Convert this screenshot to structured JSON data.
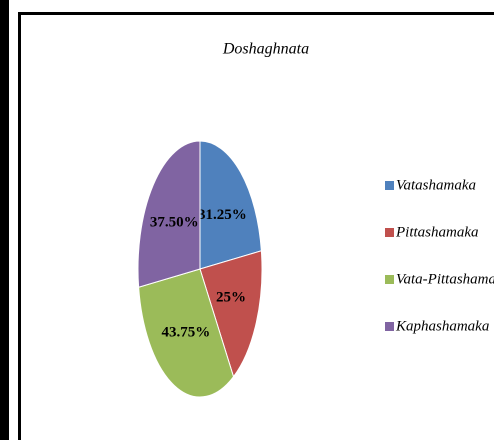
{
  "chart_data": {
    "type": "pie",
    "title": "Doshaghnata",
    "categories": [
      "Vatashamaka",
      "Pittashamaka",
      "Vata-Pittashamaka",
      "Kaphashamaka"
    ],
    "values": [
      31.25,
      25,
      43.75,
      37.5
    ],
    "value_labels": [
      "31.25%",
      "25%",
      "43.75%",
      "37.50%"
    ],
    "colors": [
      "#4f81bd",
      "#c0504d",
      "#9bbb59",
      "#8064a2"
    ],
    "legend": "right"
  }
}
